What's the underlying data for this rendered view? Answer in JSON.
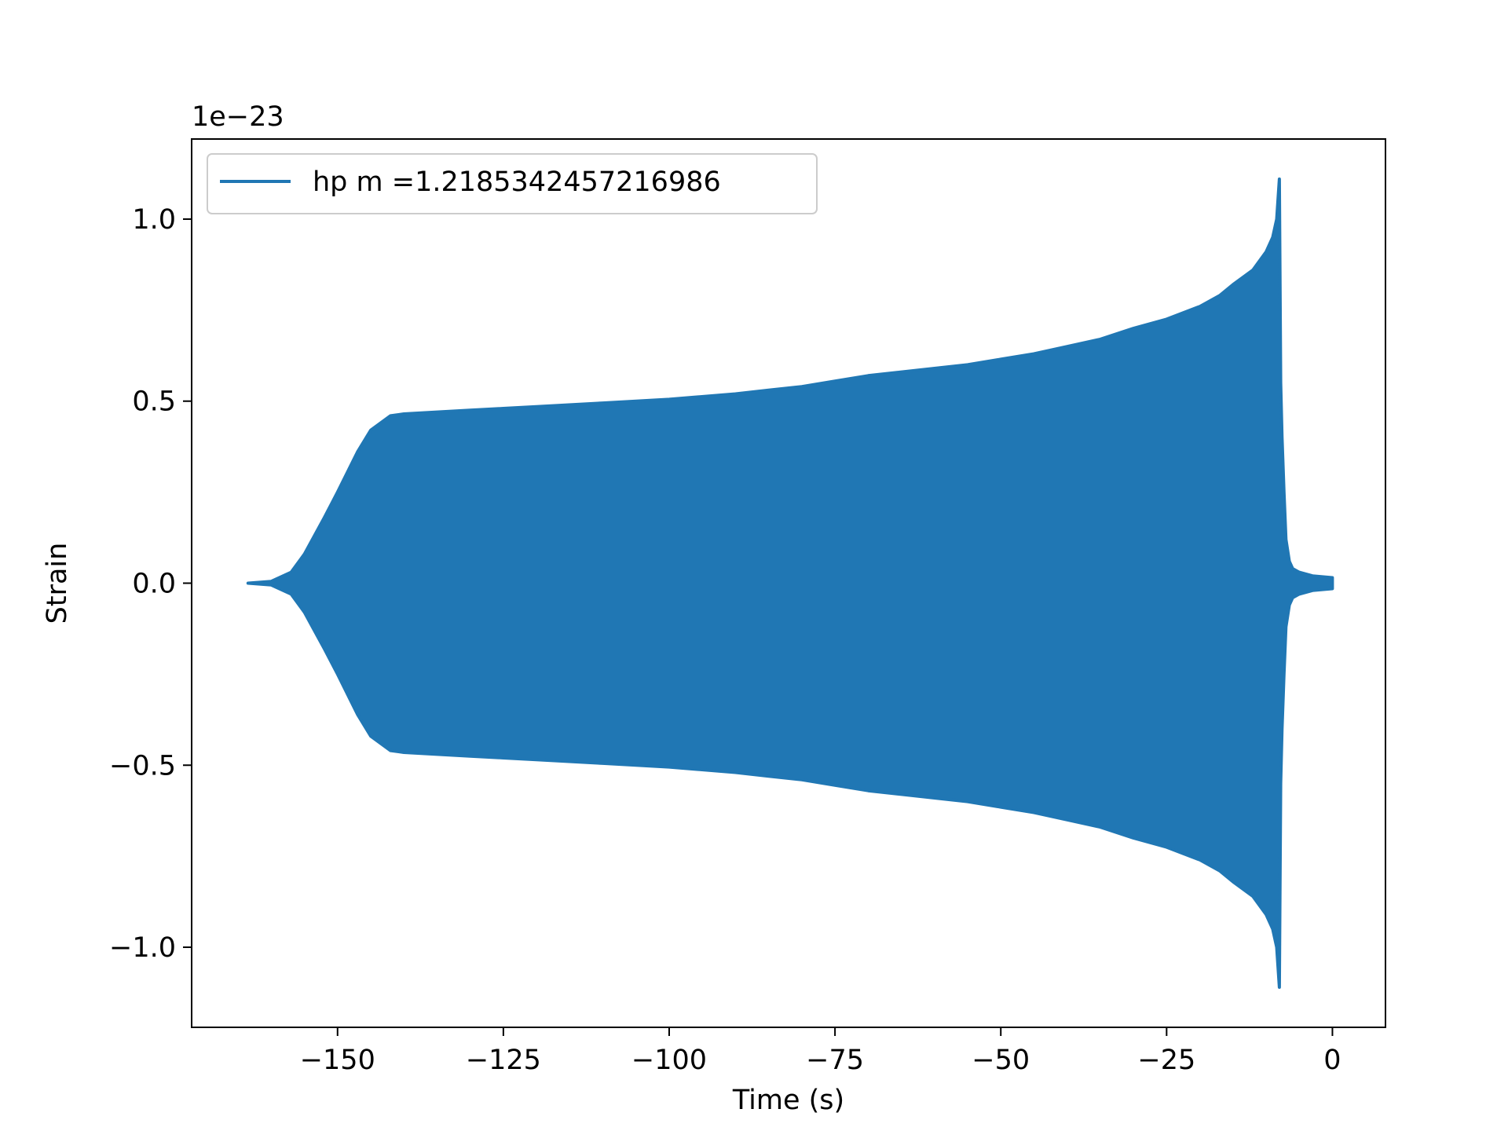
{
  "chart_data": {
    "type": "line",
    "title": "",
    "xlabel": "Time (s)",
    "ylabel": "Strain",
    "offset_label": "1e−23",
    "scale": 1e-23,
    "xlim": [
      -172,
      8
    ],
    "ylim": [
      -1.22,
      1.22
    ],
    "x_ticks": [
      -150,
      -125,
      -100,
      -75,
      -50,
      -25,
      0
    ],
    "x_tick_labels": [
      "−150",
      "−125",
      "−100",
      "−75",
      "−50",
      "−25",
      "0"
    ],
    "y_ticks": [
      1.0,
      0.5,
      0.0,
      -0.5,
      -1.0
    ],
    "y_tick_labels": [
      "1.0",
      "0.5",
      "0.0",
      "−0.5",
      "−1.0"
    ],
    "grid": false,
    "legend_position": "upper-left",
    "series": [
      {
        "name": "hp m =1.2185342457216986",
        "color": "#2077b4",
        "x_start": -163.5,
        "x_peak": -8,
        "x_end": 0,
        "envelope_x": [
          -163.5,
          -160,
          -157,
          -155,
          -152,
          -150,
          -147,
          -145,
          -142,
          -140,
          -135,
          -130,
          -125,
          -120,
          -110,
          -100,
          -90,
          -85,
          -80,
          -75,
          -70,
          -60,
          -55,
          -50,
          -45,
          -40,
          -35,
          -30,
          -25,
          -20,
          -17,
          -15,
          -12,
          -10,
          -9,
          -8.4,
          -8,
          -7.8,
          -7.6,
          -7.3,
          -7,
          -6.5,
          -6,
          -5,
          -3,
          0
        ],
        "envelope_upper": [
          0.0,
          0.005,
          0.03,
          0.08,
          0.18,
          0.25,
          0.36,
          0.42,
          0.46,
          0.465,
          0.47,
          0.475,
          0.48,
          0.485,
          0.495,
          0.505,
          0.52,
          0.53,
          0.54,
          0.555,
          0.57,
          0.59,
          0.6,
          0.615,
          0.63,
          0.65,
          0.67,
          0.7,
          0.725,
          0.76,
          0.79,
          0.82,
          0.86,
          0.91,
          0.95,
          1.0,
          1.11,
          0.55,
          0.4,
          0.25,
          0.12,
          0.06,
          0.04,
          0.03,
          0.02,
          0.015
        ],
        "envelope_lower": [
          0.0,
          -0.005,
          -0.03,
          -0.08,
          -0.18,
          -0.25,
          -0.36,
          -0.42,
          -0.46,
          -0.465,
          -0.47,
          -0.475,
          -0.48,
          -0.485,
          -0.495,
          -0.505,
          -0.52,
          -0.53,
          -0.54,
          -0.555,
          -0.57,
          -0.59,
          -0.6,
          -0.615,
          -0.63,
          -0.65,
          -0.67,
          -0.7,
          -0.725,
          -0.76,
          -0.79,
          -0.82,
          -0.86,
          -0.91,
          -0.95,
          -1.0,
          -1.11,
          -0.55,
          -0.4,
          -0.25,
          -0.12,
          -0.06,
          -0.04,
          -0.03,
          -0.02,
          -0.015
        ]
      }
    ]
  }
}
